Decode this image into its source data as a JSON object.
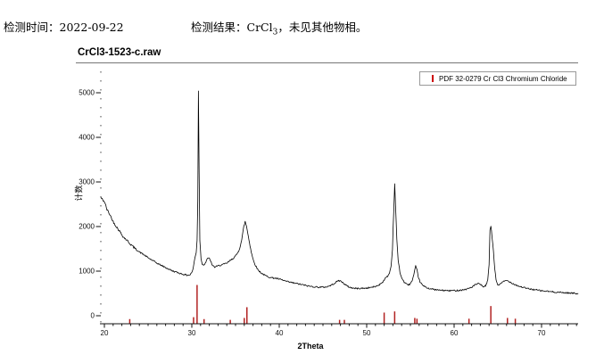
{
  "report": {
    "time_label": "检测时间：",
    "time_value": "2022-09-22",
    "result_label": "检测结果：",
    "result_formula_base": "CrCl",
    "result_formula_sub": "3",
    "result_note": "，未见其他物相。"
  },
  "chart_data": {
    "type": "line",
    "title": "CrCl3-1523-c.raw",
    "xlabel": "2Theta",
    "ylabel": "计数",
    "xlim": [
      19.6,
      74.2
    ],
    "ylim": [
      0,
      5400
    ],
    "x_ticks": [
      20,
      30,
      40,
      50,
      60,
      70
    ],
    "x_minor_tick_step": 1,
    "y_ticks": [
      0,
      1000,
      2000,
      3000,
      4000,
      5000
    ],
    "grid": false,
    "legend_position": "top-right",
    "series": [
      {
        "name": "CrCl3-1523-c.raw",
        "color": "#000000",
        "points": [
          [
            19.6,
            2650
          ],
          [
            19.8,
            2600
          ],
          [
            20,
            2560
          ],
          [
            20.3,
            2380
          ],
          [
            20.6,
            2280
          ],
          [
            21,
            2110
          ],
          [
            21.4,
            1990
          ],
          [
            21.8,
            1880
          ],
          [
            22.2,
            1760
          ],
          [
            22.6,
            1690
          ],
          [
            23,
            1600
          ],
          [
            23.5,
            1510
          ],
          [
            24,
            1430
          ],
          [
            24.5,
            1370
          ],
          [
            25,
            1300
          ],
          [
            25.5,
            1240
          ],
          [
            26,
            1180
          ],
          [
            26.5,
            1130
          ],
          [
            27,
            1080
          ],
          [
            27.5,
            1030
          ],
          [
            28,
            990
          ],
          [
            28.5,
            960
          ],
          [
            29,
            930
          ],
          [
            29.4,
            910
          ],
          [
            29.8,
            915
          ],
          [
            30.1,
            1010
          ],
          [
            30.35,
            1290
          ],
          [
            30.5,
            1420
          ],
          [
            30.6,
            1700
          ],
          [
            30.68,
            2600
          ],
          [
            30.76,
            5050
          ],
          [
            30.84,
            3200
          ],
          [
            30.92,
            1700
          ],
          [
            31.05,
            1280
          ],
          [
            31.2,
            1160
          ],
          [
            31.4,
            1140
          ],
          [
            31.6,
            1200
          ],
          [
            31.8,
            1280
          ],
          [
            31.95,
            1310
          ],
          [
            32.1,
            1240
          ],
          [
            32.3,
            1150
          ],
          [
            32.6,
            1090
          ],
          [
            32.9,
            1110
          ],
          [
            33.2,
            1130
          ],
          [
            33.6,
            1150
          ],
          [
            34,
            1180
          ],
          [
            34.4,
            1240
          ],
          [
            34.8,
            1300
          ],
          [
            35.1,
            1360
          ],
          [
            35.4,
            1470
          ],
          [
            35.7,
            1700
          ],
          [
            35.95,
            2000
          ],
          [
            36.1,
            2110
          ],
          [
            36.25,
            2010
          ],
          [
            36.4,
            1850
          ],
          [
            36.6,
            1640
          ],
          [
            36.8,
            1430
          ],
          [
            37,
            1270
          ],
          [
            37.3,
            1120
          ],
          [
            37.6,
            1020
          ],
          [
            38,
            950
          ],
          [
            38.4,
            900
          ],
          [
            38.8,
            870
          ],
          [
            39.2,
            850
          ],
          [
            39.6,
            840
          ],
          [
            40,
            820
          ],
          [
            40.5,
            790
          ],
          [
            41,
            760
          ],
          [
            41.5,
            740
          ],
          [
            42,
            720
          ],
          [
            42.5,
            700
          ],
          [
            43,
            680
          ],
          [
            43.5,
            660
          ],
          [
            44,
            650
          ],
          [
            44.5,
            640
          ],
          [
            45,
            640
          ],
          [
            45.5,
            650
          ],
          [
            46,
            690
          ],
          [
            46.4,
            740
          ],
          [
            46.8,
            790
          ],
          [
            47.1,
            770
          ],
          [
            47.4,
            720
          ],
          [
            47.8,
            660
          ],
          [
            48.2,
            630
          ],
          [
            48.6,
            615
          ],
          [
            49,
            610
          ],
          [
            49.5,
            615
          ],
          [
            50,
            620
          ],
          [
            50.5,
            635
          ],
          [
            51,
            655
          ],
          [
            51.4,
            690
          ],
          [
            51.8,
            750
          ],
          [
            52.1,
            830
          ],
          [
            52.4,
            890
          ],
          [
            52.6,
            950
          ],
          [
            52.8,
            1120
          ],
          [
            52.95,
            1500
          ],
          [
            53.1,
            2400
          ],
          [
            53.2,
            2950
          ],
          [
            53.3,
            2500
          ],
          [
            53.45,
            1700
          ],
          [
            53.6,
            1250
          ],
          [
            53.8,
            980
          ],
          [
            54,
            850
          ],
          [
            54.3,
            750
          ],
          [
            54.6,
            700
          ],
          [
            54.9,
            700
          ],
          [
            55.2,
            780
          ],
          [
            55.4,
            920
          ],
          [
            55.6,
            1110
          ],
          [
            55.75,
            1020
          ],
          [
            55.9,
            880
          ],
          [
            56.1,
            760
          ],
          [
            56.4,
            680
          ],
          [
            56.7,
            645
          ],
          [
            57,
            620
          ],
          [
            57.4,
            600
          ],
          [
            57.8,
            585
          ],
          [
            58.2,
            575
          ],
          [
            58.6,
            570
          ],
          [
            59,
            565
          ],
          [
            59.5,
            560
          ],
          [
            60,
            565
          ],
          [
            60.5,
            570
          ],
          [
            61,
            580
          ],
          [
            61.5,
            600
          ],
          [
            62,
            640
          ],
          [
            62.4,
            690
          ],
          [
            62.7,
            720
          ],
          [
            63,
            700
          ],
          [
            63.3,
            655
          ],
          [
            63.6,
            660
          ],
          [
            63.85,
            800
          ],
          [
            64,
            1150
          ],
          [
            64.1,
            1900
          ],
          [
            64.2,
            2020
          ],
          [
            64.35,
            1750
          ],
          [
            64.5,
            1450
          ],
          [
            64.65,
            1050
          ],
          [
            64.8,
            800
          ],
          [
            65,
            690
          ],
          [
            65.3,
            710
          ],
          [
            65.6,
            760
          ],
          [
            65.9,
            790
          ],
          [
            66.2,
            780
          ],
          [
            66.5,
            745
          ],
          [
            66.9,
            705
          ],
          [
            67.3,
            670
          ],
          [
            67.7,
            645
          ],
          [
            68.1,
            625
          ],
          [
            68.5,
            605
          ],
          [
            69,
            590
          ],
          [
            69.5,
            575
          ],
          [
            70,
            560
          ],
          [
            70.5,
            550
          ],
          [
            71,
            540
          ],
          [
            71.5,
            532
          ],
          [
            72,
            525
          ],
          [
            72.5,
            518
          ],
          [
            73,
            512
          ],
          [
            73.5,
            506
          ],
          [
            74,
            502
          ],
          [
            74.2,
            500
          ]
        ]
      }
    ],
    "reference_sticks": {
      "name": "PDF 32-0279 Cr Cl3 Chromium Chloride",
      "color": "#b22222",
      "legend_marker_color": "#cc0000",
      "peaks": [
        [
          22.9,
          11
        ],
        [
          30.2,
          16
        ],
        [
          30.6,
          100
        ],
        [
          31.4,
          11
        ],
        [
          34.4,
          9
        ],
        [
          36.0,
          14
        ],
        [
          36.3,
          42
        ],
        [
          46.9,
          9
        ],
        [
          47.45,
          9
        ],
        [
          52.0,
          28
        ],
        [
          53.2,
          31
        ],
        [
          55.5,
          14
        ],
        [
          55.75,
          12
        ],
        [
          61.7,
          12
        ],
        [
          64.2,
          45
        ],
        [
          66.1,
          14
        ],
        [
          67.0,
          12
        ]
      ]
    }
  }
}
